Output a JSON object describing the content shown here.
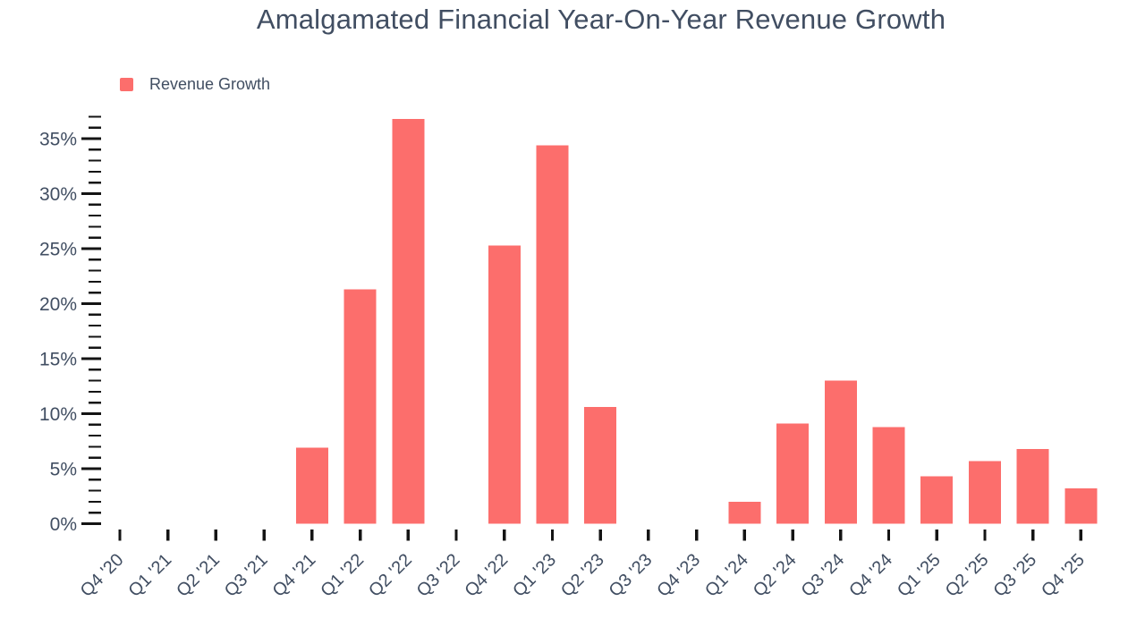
{
  "chart": {
    "title": "Amalgamated Financial Year-On-Year Revenue Growth",
    "legend_label": "Revenue Growth"
  },
  "chart_data": {
    "type": "bar",
    "title": "Amalgamated Financial Year-On-Year Revenue Growth",
    "legend": [
      {
        "label": "Revenue Growth",
        "color": "#fc6e6c"
      }
    ],
    "legend_position": "top-left",
    "categories": [
      "Q4 '20",
      "Q1 '21",
      "Q2 '21",
      "Q3 '21",
      "Q4 '21",
      "Q1 '22",
      "Q2 '22",
      "Q3 '22",
      "Q4 '22",
      "Q1 '23",
      "Q2 '23",
      "Q3 '23",
      "Q4 '23",
      "Q1 '24",
      "Q2 '24",
      "Q3 '24",
      "Q4 '24",
      "Q1 '25",
      "Q2 '25",
      "Q3 '25",
      "Q4 '25"
    ],
    "series": [
      {
        "name": "Revenue Growth",
        "values": [
          0,
          0,
          0,
          0,
          6.9,
          21.3,
          36.8,
          0,
          25.3,
          34.4,
          10.6,
          0,
          0,
          2.0,
          9.1,
          13.0,
          8.8,
          4.3,
          5.7,
          6.8,
          3.2
        ]
      }
    ],
    "unit": "%",
    "xlabel": "",
    "ylabel": "",
    "ylim": [
      0,
      37
    ],
    "ytick_major_values": [
      0,
      5,
      10,
      15,
      20,
      25,
      30,
      35
    ],
    "ytick_labels": [
      "0%",
      "5%",
      "10%",
      "15%",
      "20%",
      "25%",
      "30%",
      "35%"
    ],
    "ytick_minor_step": 1,
    "grid": false,
    "bar_color": "#fc6e6c",
    "text_color": "#414e62",
    "tick_color": "#141414"
  }
}
